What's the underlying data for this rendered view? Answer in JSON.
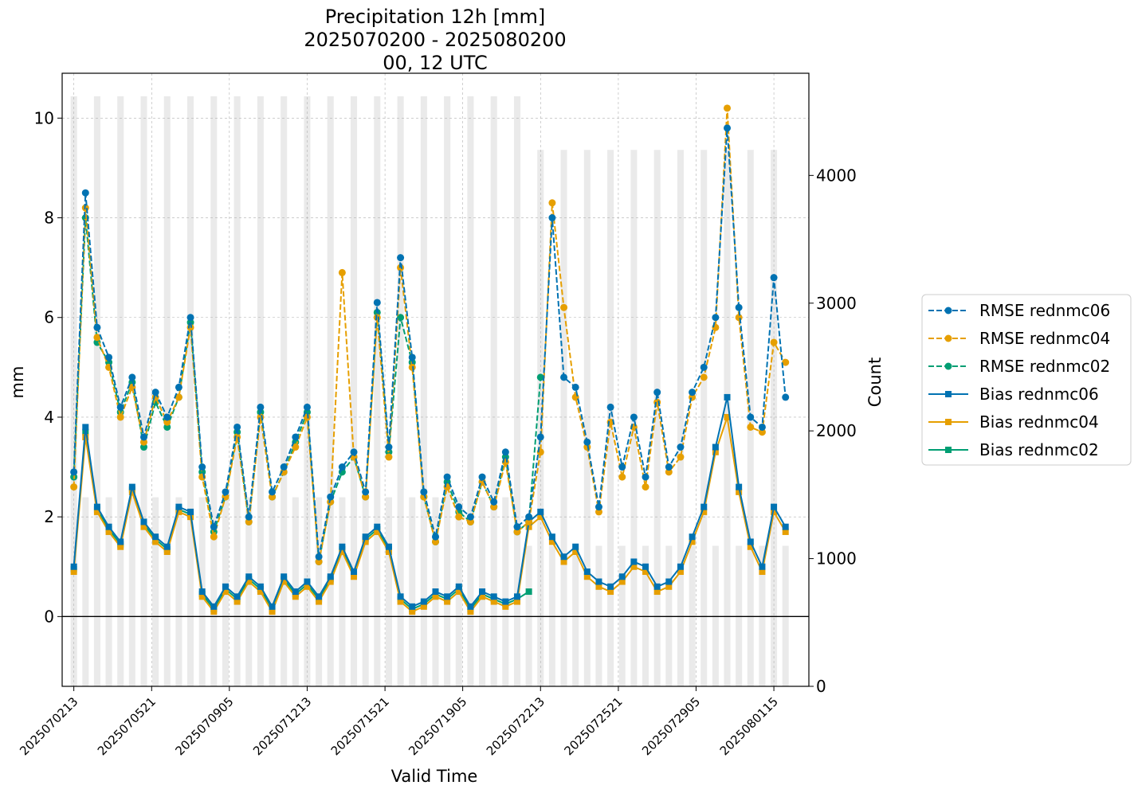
{
  "chart_data": {
    "type": "line",
    "title": [
      "Precipitation 12h [mm]",
      "2025070200 - 2025080200",
      "00, 12 UTC"
    ],
    "xlabel": "Valid Time",
    "ylabel": "mm",
    "y2label": "Count",
    "xlim": [
      -1.0,
      63.0
    ],
    "ylim": [
      -1.4,
      10.9
    ],
    "y2lim": [
      0,
      4800
    ],
    "x_ticks": [
      {
        "x": 0,
        "label": "2025070213"
      },
      {
        "x": 6.67,
        "label": "2025070521"
      },
      {
        "x": 13.33,
        "label": "2025070905"
      },
      {
        "x": 20.0,
        "label": "2025071213"
      },
      {
        "x": 26.67,
        "label": "2025071521"
      },
      {
        "x": 33.33,
        "label": "2025071905"
      },
      {
        "x": 40.0,
        "label": "2025072213"
      },
      {
        "x": 46.67,
        "label": "2025072521"
      },
      {
        "x": 53.33,
        "label": "2025072905"
      },
      {
        "x": 60.0,
        "label": "2025080115"
      }
    ],
    "y_ticks": [
      0,
      2,
      4,
      6,
      8,
      10
    ],
    "y2_ticks": [
      0,
      1000,
      2000,
      3000,
      4000
    ],
    "zero_line": 0,
    "grid": true,
    "legend_position": "outside-right",
    "x": [
      0,
      1,
      2,
      3,
      4,
      5,
      6,
      7,
      8,
      9,
      10,
      11,
      12,
      13,
      14,
      15,
      16,
      17,
      18,
      19,
      20,
      21,
      22,
      23,
      24,
      25,
      26,
      27,
      28,
      29,
      30,
      31,
      32,
      33,
      34,
      35,
      36,
      37,
      38,
      39,
      40,
      41,
      42,
      43,
      44,
      45,
      46,
      47,
      48,
      49,
      50,
      51,
      52,
      53,
      54,
      55,
      56,
      57,
      58,
      59,
      60,
      61
    ],
    "count_bars": {
      "name": "Count",
      "color": "#d9d9d9",
      "values": [
        4620,
        1480,
        4620,
        1480,
        4620,
        1480,
        4620,
        1480,
        4620,
        1480,
        4620,
        1480,
        4620,
        1480,
        4620,
        1480,
        4620,
        1480,
        4620,
        1480,
        4620,
        1480,
        4620,
        1480,
        4620,
        1480,
        4620,
        1480,
        4620,
        1480,
        4620,
        1480,
        4620,
        1480,
        4620,
        1480,
        4620,
        1480,
        4620,
        1100,
        4200,
        1100,
        4200,
        1100,
        4200,
        1100,
        4200,
        1100,
        4200,
        1100,
        4200,
        1100,
        4200,
        1100,
        4200,
        1100,
        4200,
        1100,
        4200,
        1100,
        4200,
        1100
      ]
    },
    "series": [
      {
        "name": "RMSE rednmc06",
        "color": "#0072b2",
        "linestyle": "dashed",
        "marker": "circle",
        "values": [
          2.9,
          8.5,
          5.8,
          5.2,
          4.2,
          4.8,
          3.6,
          4.5,
          4.0,
          4.6,
          6.0,
          3.0,
          1.8,
          2.5,
          3.8,
          2.0,
          4.2,
          2.5,
          3.0,
          3.6,
          4.2,
          1.2,
          2.4,
          3.0,
          3.3,
          2.5,
          6.3,
          3.4,
          7.2,
          5.2,
          2.5,
          1.6,
          2.8,
          2.2,
          2.0,
          2.8,
          2.3,
          3.3,
          1.8,
          2.0,
          3.6,
          8.0,
          4.8,
          4.6,
          3.5,
          2.2,
          4.2,
          3.0,
          4.0,
          2.8,
          4.5,
          3.0,
          3.4,
          4.5,
          5.0,
          6.0,
          9.8,
          6.2,
          4.0,
          3.8,
          6.8,
          4.4
        ]
      },
      {
        "name": "RMSE rednmc04",
        "color": "#e69f00",
        "linestyle": "dashed",
        "marker": "circle",
        "values": [
          2.6,
          8.2,
          5.6,
          5.0,
          4.0,
          4.6,
          3.5,
          4.4,
          3.9,
          4.4,
          5.8,
          2.8,
          1.6,
          2.4,
          3.6,
          1.9,
          4.0,
          2.4,
          2.9,
          3.4,
          4.0,
          1.1,
          2.3,
          6.9,
          3.2,
          2.4,
          6.0,
          3.2,
          7.0,
          5.0,
          2.4,
          1.5,
          2.6,
          2.0,
          1.9,
          2.7,
          2.2,
          3.1,
          1.7,
          1.9,
          3.3,
          8.3,
          6.2,
          4.4,
          3.4,
          2.1,
          3.9,
          2.8,
          3.8,
          2.6,
          4.3,
          2.9,
          3.2,
          4.4,
          4.8,
          5.8,
          10.2,
          6.0,
          3.8,
          3.7,
          5.5,
          5.1
        ]
      },
      {
        "name": "RMSE rednmc02",
        "color": "#009e73",
        "linestyle": "dashed",
        "marker": "circle",
        "values": [
          2.8,
          8.0,
          5.5,
          5.1,
          4.1,
          4.7,
          3.4,
          4.3,
          3.8,
          4.4,
          5.9,
          2.9,
          1.7,
          2.4,
          3.7,
          1.9,
          4.1,
          2.4,
          2.9,
          3.5,
          4.1,
          1.1,
          2.3,
          2.9,
          3.2,
          2.4,
          6.1,
          3.3,
          6.0,
          5.1,
          2.4,
          1.5,
          2.7,
          2.1,
          1.9,
          2.7,
          2.2,
          3.2,
          1.7,
          1.9,
          4.8,
          null,
          null,
          null,
          null,
          null,
          null,
          null,
          null,
          null,
          null,
          null,
          null,
          null,
          null,
          null,
          null,
          null,
          null,
          null,
          null,
          null
        ]
      },
      {
        "name": "Bias rednmc06",
        "color": "#0072b2",
        "linestyle": "solid",
        "marker": "square",
        "values": [
          1.0,
          3.8,
          2.2,
          1.8,
          1.5,
          2.6,
          1.9,
          1.6,
          1.4,
          2.2,
          2.1,
          0.5,
          0.2,
          0.6,
          0.4,
          0.8,
          0.6,
          0.2,
          0.8,
          0.5,
          0.7,
          0.4,
          0.8,
          1.4,
          0.9,
          1.6,
          1.8,
          1.4,
          0.4,
          0.2,
          0.3,
          0.5,
          0.4,
          0.6,
          0.2,
          0.5,
          0.4,
          0.3,
          0.4,
          1.9,
          2.1,
          1.6,
          1.2,
          1.4,
          0.9,
          0.7,
          0.6,
          0.8,
          1.1,
          1.0,
          0.6,
          0.7,
          1.0,
          1.6,
          2.2,
          3.4,
          4.4,
          2.6,
          1.5,
          1.0,
          2.2,
          1.8
        ]
      },
      {
        "name": "Bias rednmc04",
        "color": "#e69f00",
        "linestyle": "solid",
        "marker": "square",
        "values": [
          0.9,
          3.6,
          2.1,
          1.7,
          1.4,
          2.5,
          1.8,
          1.5,
          1.3,
          2.1,
          2.0,
          0.4,
          0.1,
          0.5,
          0.3,
          0.7,
          0.5,
          0.1,
          0.7,
          0.4,
          0.6,
          0.3,
          0.7,
          1.3,
          0.8,
          1.5,
          1.7,
          1.3,
          0.3,
          0.1,
          0.2,
          0.4,
          0.3,
          0.5,
          0.1,
          0.4,
          0.3,
          0.2,
          0.3,
          1.8,
          2.0,
          1.5,
          1.1,
          1.3,
          0.8,
          0.6,
          0.5,
          0.7,
          1.0,
          0.9,
          0.5,
          0.6,
          0.9,
          1.5,
          2.1,
          3.3,
          4.0,
          2.5,
          1.4,
          0.9,
          2.1,
          1.7
        ]
      },
      {
        "name": "Bias rednmc02",
        "color": "#009e73",
        "linestyle": "solid",
        "marker": "square",
        "values": [
          0.95,
          3.7,
          2.15,
          1.75,
          1.45,
          2.55,
          1.85,
          1.55,
          1.35,
          2.15,
          2.05,
          0.45,
          0.15,
          0.55,
          0.35,
          0.75,
          0.55,
          0.15,
          0.75,
          0.45,
          0.65,
          0.35,
          0.75,
          1.35,
          0.85,
          1.55,
          1.75,
          1.35,
          0.35,
          0.15,
          0.25,
          0.45,
          0.35,
          0.55,
          0.15,
          0.45,
          0.35,
          0.25,
          0.35,
          0.5,
          null,
          null,
          null,
          null,
          null,
          null,
          null,
          null,
          null,
          null,
          null,
          null,
          null,
          null,
          null,
          null,
          null,
          null,
          null,
          null,
          null,
          null
        ]
      }
    ]
  }
}
